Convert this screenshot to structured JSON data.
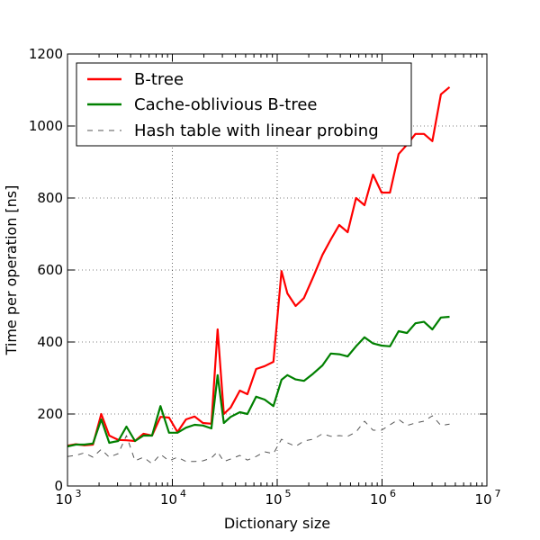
{
  "chart_data": {
    "type": "line",
    "title": "",
    "xlabel": "Dictionary size",
    "ylabel": "Time per operation [ns]",
    "xscale": "log",
    "xlim": [
      1000,
      10000000
    ],
    "ylim": [
      0,
      1200
    ],
    "grid": true,
    "legend_position": "top-left",
    "x_ticks": [
      {
        "value": 1000,
        "base": "10",
        "exp": "3"
      },
      {
        "value": 10000,
        "base": "10",
        "exp": "4"
      },
      {
        "value": 100000,
        "base": "10",
        "exp": "5"
      },
      {
        "value": 1000000,
        "base": "10",
        "exp": "6"
      },
      {
        "value": 10000000,
        "base": "10",
        "exp": "7"
      }
    ],
    "y_ticks": [
      0,
      200,
      400,
      600,
      800,
      1000,
      1200
    ],
    "series": [
      {
        "name": "B-tree",
        "color": "#ff0000",
        "style": "solid",
        "x": [
          1000,
          1200,
          1450,
          1750,
          2100,
          2500,
          3050,
          3650,
          4400,
          5300,
          6400,
          7700,
          9300,
          11200,
          13500,
          16300,
          19600,
          23600,
          27000,
          31000,
          36000,
          44000,
          52000,
          63000,
          76000,
          92000,
          110000,
          125000,
          150000,
          180000,
          220000,
          270000,
          325000,
          390000,
          470000,
          565000,
          680000,
          820000,
          990000,
          1190000,
          1440000,
          1730000,
          2080000,
          2510000,
          3020000,
          3640000,
          4400000
        ],
        "y": [
          112,
          116,
          113,
          115,
          200,
          140,
          128,
          127,
          125,
          145,
          140,
          192,
          190,
          150,
          185,
          193,
          175,
          173,
          435,
          200,
          218,
          265,
          255,
          325,
          333,
          345,
          597,
          535,
          500,
          522,
          580,
          642,
          685,
          725,
          705,
          800,
          780,
          865,
          815,
          815,
          922,
          948,
          978,
          978,
          958,
          1088,
          1108
        ]
      },
      {
        "name": "Cache-oblivious B-tree",
        "color": "#008000",
        "style": "solid",
        "x": [
          1000,
          1200,
          1450,
          1750,
          2100,
          2500,
          3050,
          3650,
          4400,
          5300,
          6400,
          7700,
          9300,
          11200,
          13500,
          16300,
          19600,
          23600,
          27000,
          31000,
          36000,
          44000,
          52000,
          63000,
          76000,
          92000,
          110000,
          125000,
          150000,
          180000,
          220000,
          270000,
          325000,
          390000,
          470000,
          565000,
          680000,
          820000,
          990000,
          1190000,
          1440000,
          1730000,
          2080000,
          2510000,
          3020000,
          3640000,
          4400000
        ],
        "y": [
          110,
          115,
          115,
          118,
          185,
          120,
          125,
          165,
          125,
          140,
          140,
          222,
          148,
          148,
          162,
          170,
          168,
          160,
          308,
          175,
          192,
          205,
          200,
          248,
          240,
          222,
          295,
          308,
          296,
          292,
          312,
          335,
          368,
          366,
          360,
          388,
          413,
          396,
          390,
          388,
          430,
          425,
          452,
          456,
          435,
          468,
          470
        ]
      },
      {
        "name": "Hash table with linear probing",
        "color": "#555555",
        "style": "dashed",
        "x": [
          1000,
          1200,
          1450,
          1750,
          2100,
          2500,
          3050,
          3650,
          4400,
          5300,
          6400,
          7700,
          9300,
          11200,
          13500,
          16300,
          19600,
          23600,
          27000,
          31000,
          36000,
          44000,
          52000,
          63000,
          76000,
          92000,
          110000,
          125000,
          150000,
          180000,
          220000,
          270000,
          325000,
          390000,
          470000,
          565000,
          680000,
          820000,
          990000,
          1190000,
          1440000,
          1730000,
          2080000,
          2510000,
          3020000,
          3640000,
          4400000
        ],
        "y": [
          82,
          85,
          92,
          80,
          102,
          80,
          90,
          140,
          70,
          80,
          62,
          88,
          70,
          80,
          68,
          68,
          70,
          78,
          95,
          68,
          75,
          85,
          72,
          82,
          95,
          90,
          130,
          120,
          110,
          125,
          130,
          145,
          138,
          140,
          138,
          150,
          180,
          155,
          155,
          170,
          185,
          168,
          175,
          180,
          195,
          168,
          172
        ]
      }
    ]
  }
}
